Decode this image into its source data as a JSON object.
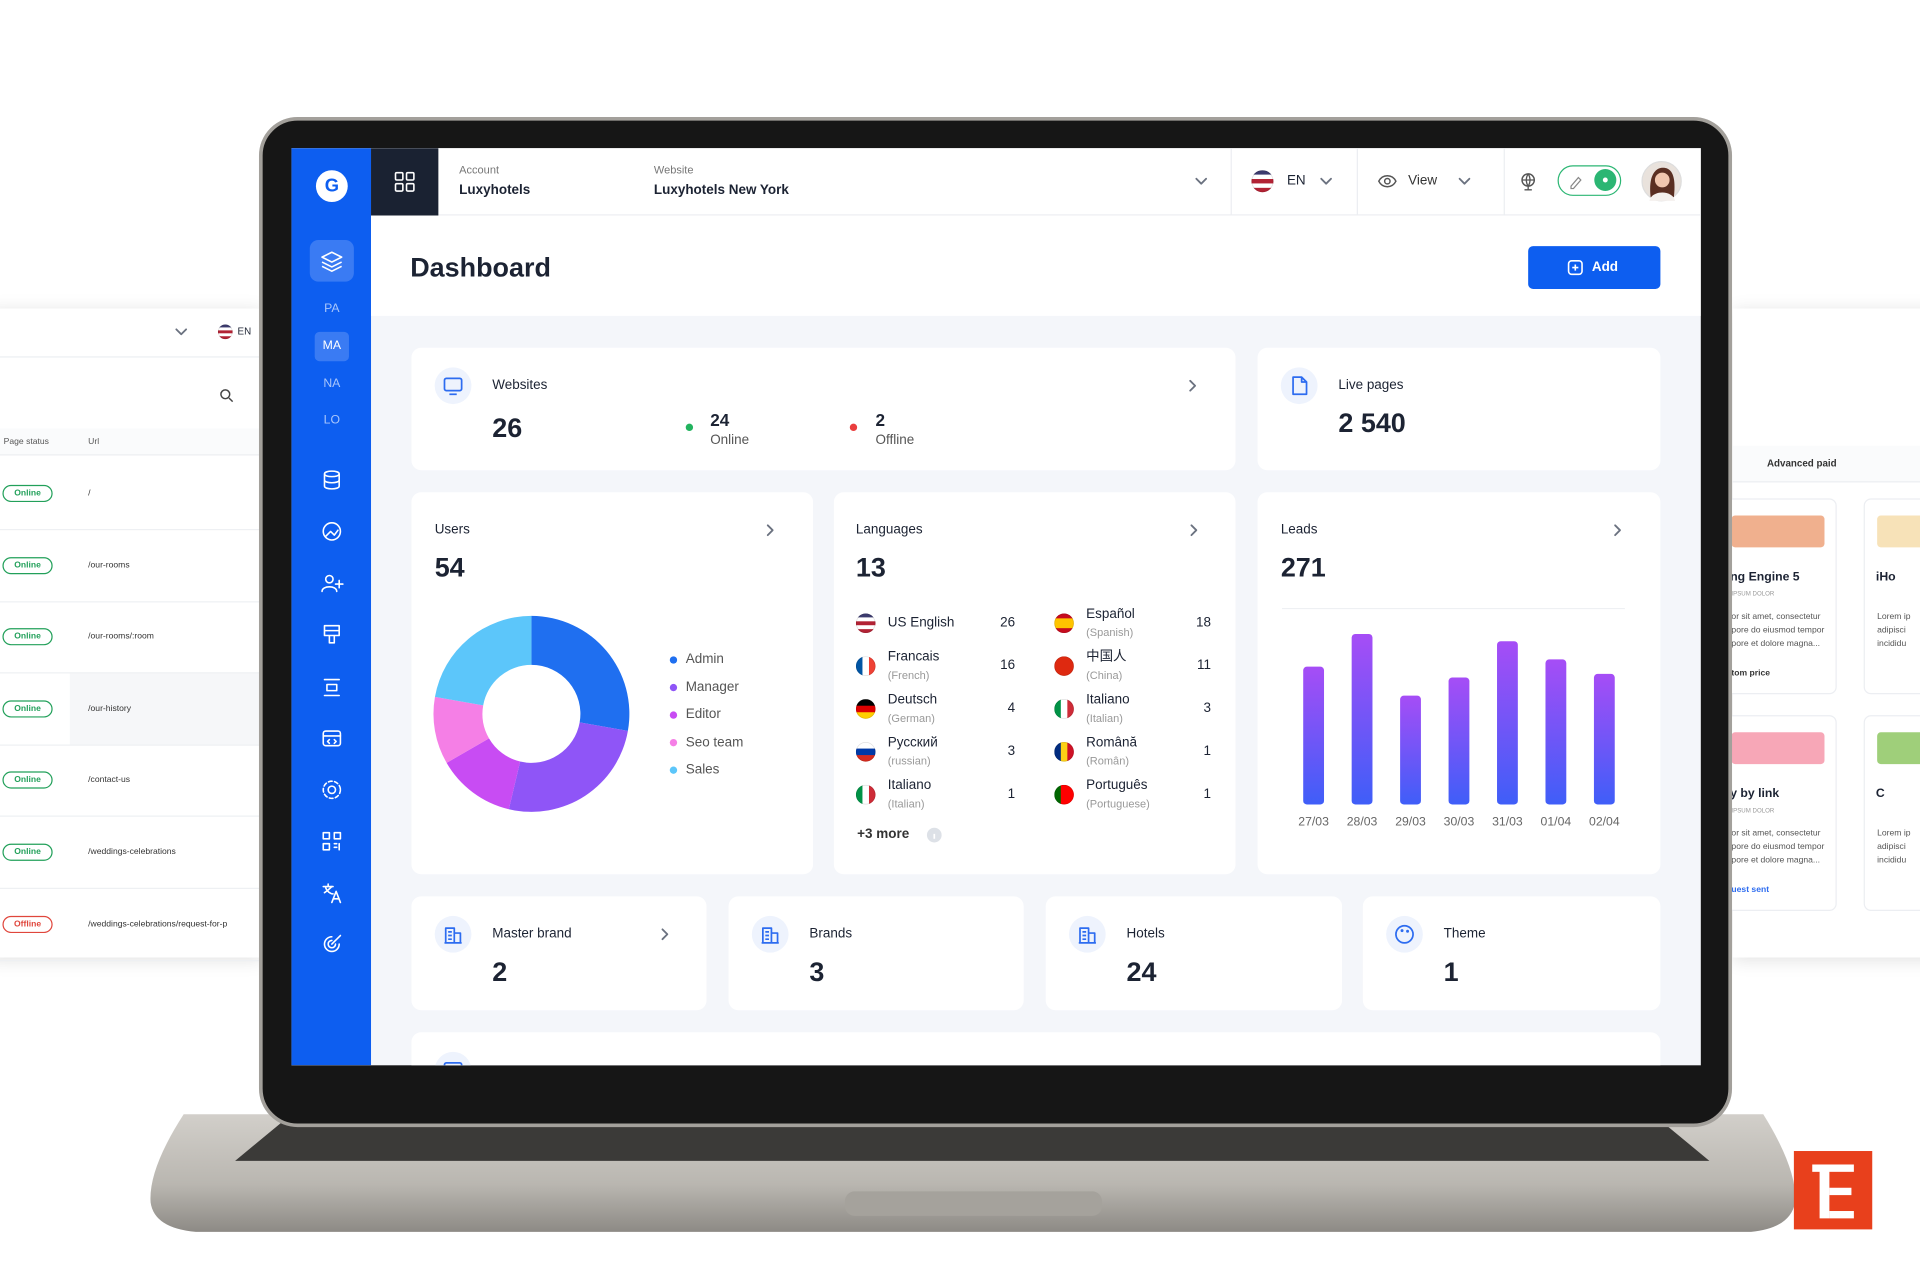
{
  "background_left": {
    "language": "EN",
    "columns": [
      "Page status",
      "Url"
    ],
    "rows": [
      {
        "status": "Online",
        "url": "/",
        "color": "#22a05a"
      },
      {
        "status": "Online",
        "url": "/our-rooms",
        "color": "#22a05a"
      },
      {
        "status": "Online",
        "url": "/our-rooms/:room",
        "color": "#22a05a"
      },
      {
        "status": "Online",
        "url": "/our-history",
        "color": "#22a05a"
      },
      {
        "status": "Online",
        "url": "/contact-us",
        "color": "#22a05a"
      },
      {
        "status": "Online",
        "url": "/weddings-celebrations",
        "color": "#22a05a"
      },
      {
        "status": "Offline",
        "url": "/weddings-celebrations/request-for-p",
        "color": "#e0463c"
      }
    ]
  },
  "background_right": {
    "tab": "Advanced paid",
    "cards": [
      {
        "title": "ng Engine 5",
        "subtitle": "IPSUM DOLOR",
        "lines": [
          "or sit amet, consectetur",
          "pore do eiusmod tempor",
          "pore et dolore magna..."
        ],
        "link": "tom price",
        "color": "#f0b08e"
      },
      {
        "title": "iHo",
        "lines": [
          "Lorem ip",
          "adipisci",
          "incididu"
        ],
        "color": "#f7e2b8"
      },
      {
        "title": "y by link",
        "subtitle": "IPSUM DOLOR",
        "lines": [
          "or sit amet, consectetur",
          "pore do eiusmod tempor",
          "pore et dolore magna..."
        ],
        "link": "uest sent",
        "color": "#f7a7b7"
      },
      {
        "title": "C",
        "lines": [
          "Lorem ip",
          "adipisci",
          "incididu"
        ],
        "color": "#9fcf7a"
      }
    ]
  },
  "topbar": {
    "account_label": "Account",
    "account": "Luxyhotels",
    "website_label": "Website",
    "website": "Luxyhotels New York",
    "language": "EN",
    "view": "View"
  },
  "sidebar": {
    "logo": "G",
    "sections": [
      "PA",
      "MA",
      "NA",
      "LO"
    ],
    "active_section": 1
  },
  "header": {
    "title": "Dashboard",
    "button": "Add"
  },
  "websites": {
    "label": "Websites",
    "total": 26,
    "online": 24,
    "online_label": "Online",
    "offline": 2,
    "offline_label": "Offline"
  },
  "live_pages": {
    "label": "Live pages",
    "total": "2 540"
  },
  "languages": {
    "label": "Languages",
    "total": 13,
    "more": "+3 more",
    "items": [
      {
        "name": "US English",
        "count": 26,
        "flag": [
          "#3c3b6e",
          "#ffffff",
          "#b22234",
          "#ffffff",
          "#b22234"
        ],
        "flag_dir": "h"
      },
      {
        "name": "Francais",
        "note": "(French)",
        "count": 16,
        "flag": [
          "#0055a4",
          "#ffffff",
          "#ef4135"
        ],
        "flag_dir": "v"
      },
      {
        "name": "Deutsch",
        "note": "(German)",
        "count": 4,
        "flag": [
          "#000000",
          "#dd0000",
          "#ffce00"
        ],
        "flag_dir": "h"
      },
      {
        "name": "Русский",
        "note": "(russian)",
        "count": 3,
        "flag": [
          "#ffffff",
          "#0039a6",
          "#d52b1e"
        ],
        "flag_dir": "h"
      },
      {
        "name": "Italiano",
        "note": "(Italian)",
        "count": 1,
        "flag": [
          "#009246",
          "#ffffff",
          "#ce2b37"
        ],
        "flag_dir": "v"
      },
      {
        "name": "Español",
        "note": "(Spanish)",
        "count": 18,
        "flag": [
          "#c60b1e",
          "#ffc400",
          "#ffc400",
          "#c60b1e"
        ],
        "flag_dir": "h"
      },
      {
        "name": "中国人",
        "note": "(China)",
        "count": 11,
        "flag": [
          "#de2910"
        ],
        "flag_dir": "h"
      },
      {
        "name": "Italiano",
        "note": "(Italian)",
        "count": 3,
        "flag": [
          "#009246",
          "#ffffff",
          "#ce2b37"
        ],
        "flag_dir": "v"
      },
      {
        "name": "Română",
        "note": "(Român)",
        "count": 1,
        "flag": [
          "#002b7f",
          "#fcd116",
          "#ce1126"
        ],
        "flag_dir": "v"
      },
      {
        "name": "Português",
        "note": "(Portuguese)",
        "count": 1,
        "flag": [
          "#006600",
          "#ff0000",
          "#ff0000"
        ],
        "flag_dir": "v"
      }
    ]
  },
  "chart_data": [
    {
      "type": "donut",
      "title": "Users",
      "total": 54,
      "categories": [
        "Admin",
        "Manager",
        "Editor",
        "Seo team",
        "Sales"
      ],
      "values": [
        15,
        14,
        7,
        6,
        12
      ],
      "colors": [
        "#1f6ff0",
        "#8f55f7",
        "#c84cf3",
        "#f57fe6",
        "#5cc6fa"
      ]
    },
    {
      "type": "bar",
      "title": "Leads",
      "total": 271,
      "categories": [
        "27/03",
        "28/03",
        "29/03",
        "30/03",
        "31/03",
        "01/04",
        "02/04"
      ],
      "values": [
        38,
        47,
        30,
        35,
        45,
        40,
        36
      ],
      "color": [
        "#a64df6",
        "#3f5ef8"
      ],
      "ylim": [
        0,
        54
      ]
    }
  ],
  "summary": [
    {
      "label": "Master brand",
      "value": 2
    },
    {
      "label": "Brands",
      "value": 3
    },
    {
      "label": "Hotels",
      "value": 24
    },
    {
      "label": "Theme",
      "value": 1
    }
  ]
}
